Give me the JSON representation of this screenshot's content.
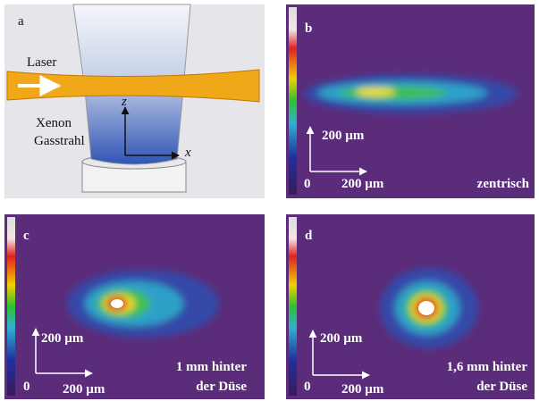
{
  "panels": [
    {
      "label": "a",
      "laser": "Laser",
      "jet": [
        "Xenon",
        "Gasstrahl"
      ],
      "axis_z": "z",
      "axis_x": "x"
    },
    {
      "label": "b",
      "scale_y": "200 µm",
      "origin": "0",
      "scale_x": "200 µm",
      "caption": [
        "zentrisch"
      ]
    },
    {
      "label": "c",
      "scale_y": "200 µm",
      "origin": "0",
      "scale_x": "200 µm",
      "caption": [
        "1 mm hinter",
        "der Düse"
      ]
    },
    {
      "label": "d",
      "scale_y": "200 µm",
      "origin": "0",
      "scale_x": "200 µm",
      "caption": [
        "1,6 mm hinter",
        "der Düse"
      ]
    }
  ]
}
